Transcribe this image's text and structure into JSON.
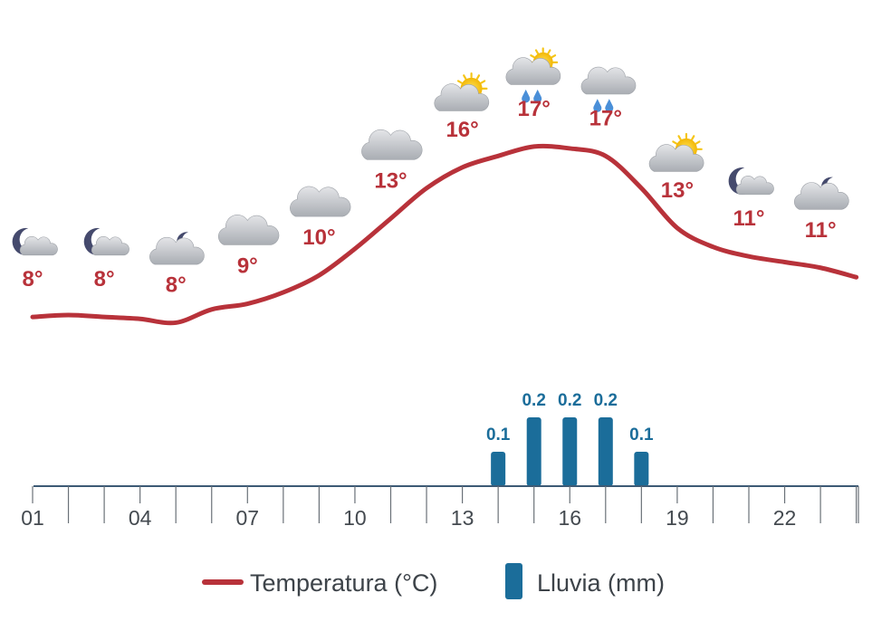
{
  "chart_data": {
    "type": "line",
    "x": [
      "01",
      "02",
      "03",
      "04",
      "05",
      "06",
      "07",
      "08",
      "09",
      "10",
      "11",
      "12",
      "13",
      "14",
      "15",
      "16",
      "17",
      "18",
      "19",
      "20",
      "21",
      "22",
      "23",
      "24"
    ],
    "x_tick_labels": [
      "01",
      "04",
      "07",
      "10",
      "13",
      "16",
      "19",
      "22"
    ],
    "series": [
      {
        "name": "Temperatura (°C)",
        "type": "line",
        "color": "#b8323a",
        "values": [
          8.0,
          8.1,
          8.0,
          7.9,
          7.7,
          8.4,
          8.7,
          9.3,
          10.2,
          11.6,
          13.2,
          14.8,
          15.9,
          16.5,
          17.0,
          16.9,
          16.5,
          14.8,
          12.7,
          11.7,
          11.2,
          10.9,
          10.6,
          10.1
        ],
        "point_labels": [
          {
            "x": "01",
            "label": "8°",
            "icon": "moon-cloud-icon"
          },
          {
            "x": "03",
            "label": "8°",
            "icon": "moon-cloud-icon"
          },
          {
            "x": "05",
            "label": "8°",
            "icon": "cloud-moon-icon"
          },
          {
            "x": "07",
            "label": "9°",
            "icon": "cloud-icon"
          },
          {
            "x": "09",
            "label": "10°",
            "icon": "cloud-icon"
          },
          {
            "x": "11",
            "label": "13°",
            "icon": "cloud-icon"
          },
          {
            "x": "13",
            "label": "16°",
            "icon": "sun-cloud-icon"
          },
          {
            "x": "15",
            "label": "17°",
            "icon": "sun-cloud-rain-icon"
          },
          {
            "x": "17",
            "label": "17°",
            "icon": "cloud-rain-icon"
          },
          {
            "x": "19",
            "label": "13°",
            "icon": "sun-cloud-icon"
          },
          {
            "x": "21",
            "label": "11°",
            "icon": "moon-cloud-icon"
          },
          {
            "x": "23",
            "label": "11°",
            "icon": "cloud-moon-icon"
          }
        ]
      },
      {
        "name": "Lluvia (mm)",
        "type": "bar",
        "color": "#1b6d9a",
        "values": [
          {
            "x": "14",
            "value": 0.1,
            "label": "0.1"
          },
          {
            "x": "15",
            "value": 0.2,
            "label": "0.2"
          },
          {
            "x": "16",
            "value": 0.2,
            "label": "0.2"
          },
          {
            "x": "17",
            "value": 0.2,
            "label": "0.2"
          },
          {
            "x": "18",
            "value": 0.1,
            "label": "0.1"
          }
        ]
      }
    ],
    "temp_range": [
      6,
      19
    ],
    "rain_range": [
      0,
      0.25
    ],
    "grid": false,
    "legend_position": "bottom-center"
  },
  "legend": {
    "temperature": "Temperatura (°C)",
    "rain": "Lluvia (mm)"
  },
  "colors": {
    "temperature": "#b8323a",
    "rain": "#1b6d9a",
    "axis": "#3d5a75",
    "cloud": "#c9cbcf",
    "sun": "#f5c518",
    "moon": "#454a6d",
    "drop": "#4a8fd8"
  }
}
